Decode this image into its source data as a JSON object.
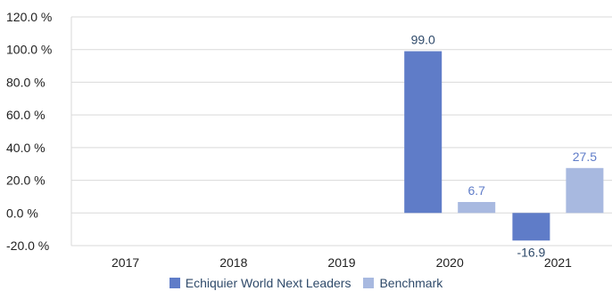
{
  "chart_data": {
    "type": "bar",
    "categories": [
      "2017",
      "2018",
      "2019",
      "2020",
      "2021"
    ],
    "series": [
      {
        "name": "Echiquier World Next Leaders",
        "values": [
          null,
          null,
          null,
          99.0,
          -16.9
        ],
        "labels": [
          "",
          "",
          "",
          "99.0",
          "-16.9"
        ],
        "color": "#5f7cc8",
        "label_color": "#2f4a6a"
      },
      {
        "name": "Benchmark",
        "values": [
          null,
          null,
          null,
          6.7,
          27.5
        ],
        "labels": [
          "",
          "",
          "",
          "6.7",
          "27.5"
        ],
        "color": "#a8b9e0",
        "label_color": "#5f7cc8"
      }
    ],
    "ylim": [
      -20,
      120
    ],
    "yticks": [
      -20,
      0,
      20,
      40,
      60,
      80,
      100,
      120
    ],
    "ytick_labels": [
      "-20.0 %",
      "0.0 %",
      "20.0 %",
      "40.0 %",
      "60.0 %",
      "80.0 %",
      "100.0 %",
      "120.0 %"
    ],
    "grid": true,
    "legend_position": "bottom",
    "title": "",
    "xlabel": "",
    "ylabel": ""
  }
}
